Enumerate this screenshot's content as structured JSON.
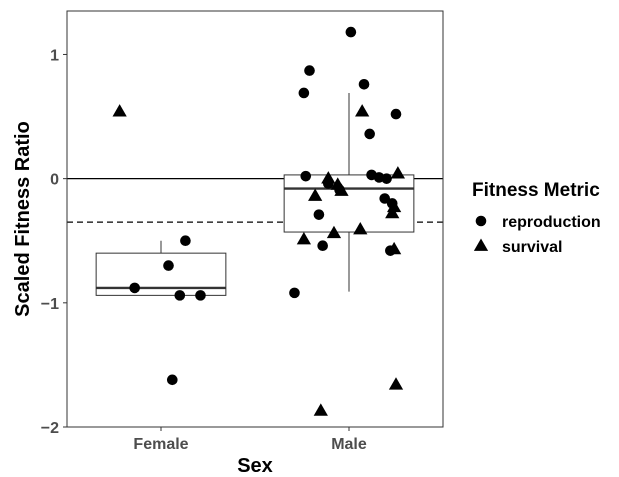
{
  "chart_data": {
    "type": "box-jitter",
    "xlabel": "Sex",
    "ylabel": "Scaled Fitness Ratio",
    "categories": [
      "Female",
      "Male"
    ],
    "ylim": [
      -2.0,
      1.35
    ],
    "yticks": [
      -2,
      -1,
      0,
      1
    ],
    "reference_lines": [
      {
        "y": 0,
        "style": "solid"
      },
      {
        "y": -0.35,
        "style": "dashed"
      }
    ],
    "legend": {
      "title": "Fitness Metric",
      "position": "right",
      "entries": [
        {
          "label": "reproduction",
          "shape": "circle"
        },
        {
          "label": "survival",
          "shape": "triangle"
        }
      ]
    },
    "boxes": [
      {
        "category": "Female",
        "whisker_low": -0.94,
        "q1": -0.94,
        "median": -0.88,
        "q3": -0.6,
        "whisker_high": -0.5
      },
      {
        "category": "Male",
        "whisker_low": -0.91,
        "q1": -0.43,
        "median": -0.08,
        "q3": 0.03,
        "whisker_high": 0.69
      }
    ],
    "series": [
      {
        "name": "reproduction",
        "shape": "circle",
        "points": [
          {
            "x": "Female",
            "jitter": 0.13,
            "y": -0.5
          },
          {
            "x": "Female",
            "jitter": 0.04,
            "y": -0.7
          },
          {
            "x": "Female",
            "jitter": -0.14,
            "y": -0.88
          },
          {
            "x": "Female",
            "jitter": 0.1,
            "y": -0.94
          },
          {
            "x": "Female",
            "jitter": 0.21,
            "y": -0.94
          },
          {
            "x": "Female",
            "jitter": 0.06,
            "y": -1.62
          },
          {
            "x": "Male",
            "jitter": 0.01,
            "y": 1.18
          },
          {
            "x": "Male",
            "jitter": -0.21,
            "y": 0.87
          },
          {
            "x": "Male",
            "jitter": 0.08,
            "y": 0.76
          },
          {
            "x": "Male",
            "jitter": -0.24,
            "y": 0.69
          },
          {
            "x": "Male",
            "jitter": 0.25,
            "y": 0.52
          },
          {
            "x": "Male",
            "jitter": 0.11,
            "y": 0.36
          },
          {
            "x": "Male",
            "jitter": -0.23,
            "y": 0.02
          },
          {
            "x": "Male",
            "jitter": 0.12,
            "y": 0.03
          },
          {
            "x": "Male",
            "jitter": 0.16,
            "y": 0.01
          },
          {
            "x": "Male",
            "jitter": 0.2,
            "y": 0.0
          },
          {
            "x": "Male",
            "jitter": -0.11,
            "y": -0.04
          },
          {
            "x": "Male",
            "jitter": -0.05,
            "y": -0.09
          },
          {
            "x": "Male",
            "jitter": 0.19,
            "y": -0.16
          },
          {
            "x": "Male",
            "jitter": 0.23,
            "y": -0.2
          },
          {
            "x": "Male",
            "jitter": -0.16,
            "y": -0.29
          },
          {
            "x": "Male",
            "jitter": -0.14,
            "y": -0.54
          },
          {
            "x": "Male",
            "jitter": 0.22,
            "y": -0.58
          },
          {
            "x": "Male",
            "jitter": -0.29,
            "y": -0.92
          }
        ]
      },
      {
        "name": "survival",
        "shape": "triangle",
        "points": [
          {
            "x": "Female",
            "jitter": -0.22,
            "y": 0.54
          },
          {
            "x": "Male",
            "jitter": 0.07,
            "y": 0.54
          },
          {
            "x": "Male",
            "jitter": 0.26,
            "y": 0.04
          },
          {
            "x": "Male",
            "jitter": -0.11,
            "y": 0.0
          },
          {
            "x": "Male",
            "jitter": -0.06,
            "y": -0.05
          },
          {
            "x": "Male",
            "jitter": -0.04,
            "y": -0.1
          },
          {
            "x": "Male",
            "jitter": -0.18,
            "y": -0.14
          },
          {
            "x": "Male",
            "jitter": 0.24,
            "y": -0.23
          },
          {
            "x": "Male",
            "jitter": 0.23,
            "y": -0.28
          },
          {
            "x": "Male",
            "jitter": 0.06,
            "y": -0.41
          },
          {
            "x": "Male",
            "jitter": -0.08,
            "y": -0.44
          },
          {
            "x": "Male",
            "jitter": -0.24,
            "y": -0.49
          },
          {
            "x": "Male",
            "jitter": 0.24,
            "y": -0.57
          },
          {
            "x": "Male",
            "jitter": 0.25,
            "y": -1.66
          },
          {
            "x": "Male",
            "jitter": -0.15,
            "y": -1.87
          }
        ]
      }
    ]
  }
}
